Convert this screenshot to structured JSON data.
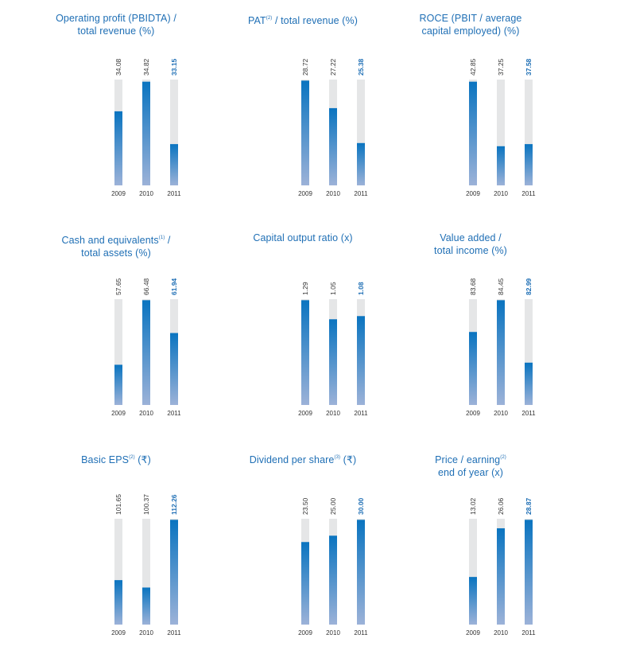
{
  "colors": {
    "title": "#1f6fb5",
    "track": "#e5e6e7",
    "bar_top": "#0a74c0",
    "bar_bottom": "#9cb2d8",
    "value_past": "#333333",
    "value_current": "#1f6fb5",
    "year": "#333333"
  },
  "chart_data": [
    {
      "type": "bar",
      "title_parts": [
        {
          "text": "Operating profit (PBIDTA) /"
        },
        {
          "text": "total revenue (%)",
          "br": true
        }
      ],
      "categories": [
        "2009",
        "2010",
        "2011"
      ],
      "values": [
        34.08,
        34.82,
        33.15
      ],
      "value_labels": [
        "34.08",
        "34.82",
        "33.15"
      ],
      "fill_levels": [
        0.7,
        0.98,
        0.39
      ]
    },
    {
      "type": "bar",
      "title_parts": [
        {
          "text": "PAT"
        },
        {
          "text": "(2)",
          "sup": true
        },
        {
          "text": " / total revenue (%)"
        }
      ],
      "categories": [
        "2009",
        "2010",
        "2011"
      ],
      "values": [
        28.72,
        27.22,
        25.38
      ],
      "value_labels": [
        "28.72",
        "27.22",
        "25.38"
      ],
      "fill_levels": [
        0.99,
        0.73,
        0.4
      ]
    },
    {
      "type": "bar",
      "title_parts": [
        {
          "text": "ROCE (PBIT / average"
        },
        {
          "text": "capital employed) (%)",
          "br": true
        }
      ],
      "categories": [
        "2009",
        "2010",
        "2011"
      ],
      "values": [
        42.85,
        37.25,
        37.58
      ],
      "value_labels": [
        "42.85",
        "37.25",
        "37.58"
      ],
      "fill_levels": [
        0.98,
        0.37,
        0.39
      ]
    },
    {
      "type": "bar",
      "title_parts": [
        {
          "text": "Cash and equivalents"
        },
        {
          "text": "(1)",
          "sup": true
        },
        {
          "text": "  /"
        },
        {
          "text": "total assets (%)",
          "br": true
        }
      ],
      "categories": [
        "2009",
        "2010",
        "2011"
      ],
      "values": [
        57.65,
        66.48,
        61.94
      ],
      "value_labels": [
        "57.65",
        "66.48",
        "61.94"
      ],
      "fill_levels": [
        0.38,
        0.99,
        0.68
      ]
    },
    {
      "type": "bar",
      "title_parts": [
        {
          "text": "Capital output ratio (x)"
        }
      ],
      "categories": [
        "2009",
        "2010",
        "2011"
      ],
      "values": [
        1.29,
        1.05,
        1.08
      ],
      "value_labels": [
        "1.29",
        "1.05",
        "1.08"
      ],
      "fill_levels": [
        0.99,
        0.81,
        0.84
      ]
    },
    {
      "type": "bar",
      "title_parts": [
        {
          "text": "Value added /"
        },
        {
          "text": "total income (%)",
          "br": true
        }
      ],
      "categories": [
        "2009",
        "2010",
        "2011"
      ],
      "values": [
        83.68,
        84.45,
        82.99
      ],
      "value_labels": [
        "83.68",
        "84.45",
        "82.99"
      ],
      "fill_levels": [
        0.69,
        0.99,
        0.4
      ]
    },
    {
      "type": "bar",
      "title_parts": [
        {
          "text": "Basic EPS"
        },
        {
          "text": "(2)",
          "sup": true
        },
        {
          "text": " (₹)"
        }
      ],
      "categories": [
        "2009",
        "2010",
        "2011"
      ],
      "values": [
        101.65,
        100.37,
        112.26
      ],
      "value_labels": [
        "101.65",
        "100.37",
        "112.26"
      ],
      "fill_levels": [
        0.42,
        0.35,
        0.99
      ]
    },
    {
      "type": "bar",
      "title_parts": [
        {
          "text": "Dividend per share"
        },
        {
          "text": "(3)",
          "sup": true
        },
        {
          "text": " (₹)"
        }
      ],
      "categories": [
        "2009",
        "2010",
        "2011"
      ],
      "values": [
        23.5,
        25.0,
        30.0
      ],
      "value_labels": [
        "23.50",
        "25.00",
        "30.00"
      ],
      "fill_levels": [
        0.78,
        0.84,
        0.99
      ]
    },
    {
      "type": "bar",
      "title_parts": [
        {
          "text": "Price / earning"
        },
        {
          "text": "(2)",
          "sup": true
        },
        {
          "text": "end of year (x)",
          "br": true
        }
      ],
      "categories": [
        "2009",
        "2010",
        "2011"
      ],
      "values": [
        13.02,
        26.06,
        28.87
      ],
      "value_labels": [
        "13.02",
        "26.06",
        "28.87"
      ],
      "fill_levels": [
        0.45,
        0.91,
        0.99
      ]
    }
  ]
}
